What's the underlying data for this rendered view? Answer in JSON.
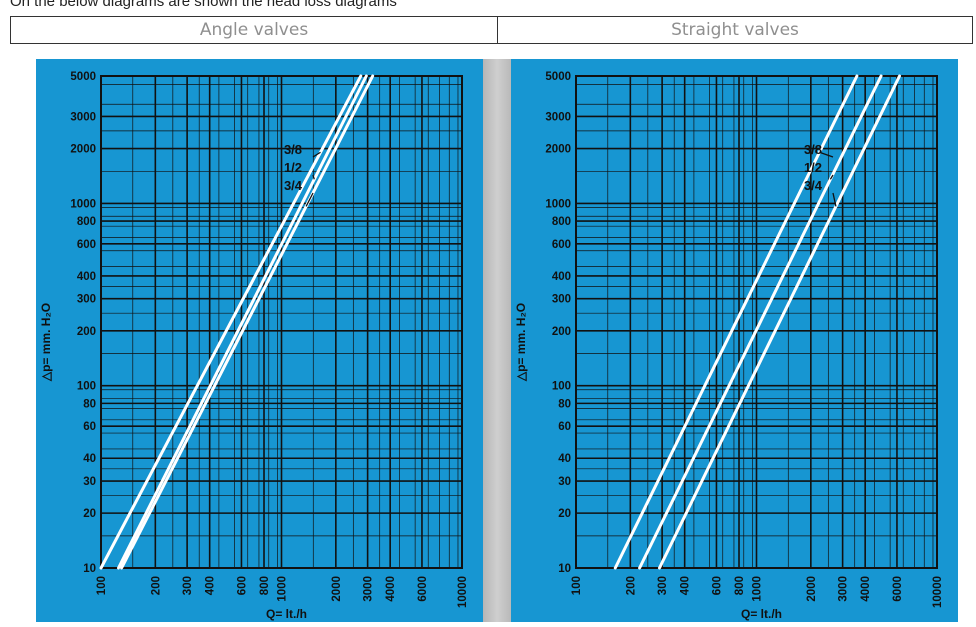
{
  "intro_text": "On the below diagrams are shown the head loss diagrams",
  "headers": {
    "left": "Angle valves",
    "right": "Straight valves"
  },
  "colors": {
    "panel": "#1796d2",
    "grid": "#111111",
    "line": "#ffffff"
  },
  "chart_data": [
    {
      "type": "line",
      "title": "Angle valves",
      "xlabel": "Q= lt./h",
      "ylabel": "△p= mm. H₂O",
      "xscale": "log",
      "yscale": "log",
      "xlim": [
        100,
        10000
      ],
      "ylim": [
        10,
        5000
      ],
      "x_ticks": [
        100,
        200,
        300,
        400,
        600,
        800,
        1000,
        2000,
        3000,
        4000,
        6000,
        10000
      ],
      "y_ticks": [
        10,
        20,
        30,
        40,
        60,
        80,
        100,
        200,
        300,
        400,
        600,
        800,
        1000,
        2000,
        3000,
        5000
      ],
      "grid": true,
      "series": [
        {
          "name": "3/8",
          "x": [
            100,
            2750
          ],
          "y": [
            10,
            5000
          ]
        },
        {
          "name": "1/2",
          "x": [
            125,
            2950
          ],
          "y": [
            10,
            5000
          ]
        },
        {
          "name": "3/4",
          "x": [
            130,
            3200
          ],
          "y": [
            10,
            5000
          ]
        }
      ]
    },
    {
      "type": "line",
      "title": "Straight valves",
      "xlabel": "Q= lt./h",
      "ylabel": "△p= mm. H₂O",
      "xscale": "log",
      "yscale": "log",
      "xlim": [
        100,
        10000
      ],
      "ylim": [
        10,
        5000
      ],
      "x_ticks": [
        100,
        200,
        300,
        400,
        600,
        800,
        1000,
        2000,
        3000,
        4000,
        6000,
        10000
      ],
      "y_ticks": [
        10,
        20,
        30,
        40,
        60,
        80,
        100,
        200,
        300,
        400,
        600,
        800,
        1000,
        2000,
        3000,
        5000
      ],
      "grid": true,
      "series": [
        {
          "name": "3/8",
          "x": [
            165,
            3600
          ],
          "y": [
            10,
            5000
          ]
        },
        {
          "name": "1/2",
          "x": [
            225,
            4900
          ],
          "y": [
            10,
            5000
          ]
        },
        {
          "name": "3/4",
          "x": [
            290,
            6200
          ],
          "y": [
            10,
            5000
          ]
        }
      ]
    }
  ]
}
